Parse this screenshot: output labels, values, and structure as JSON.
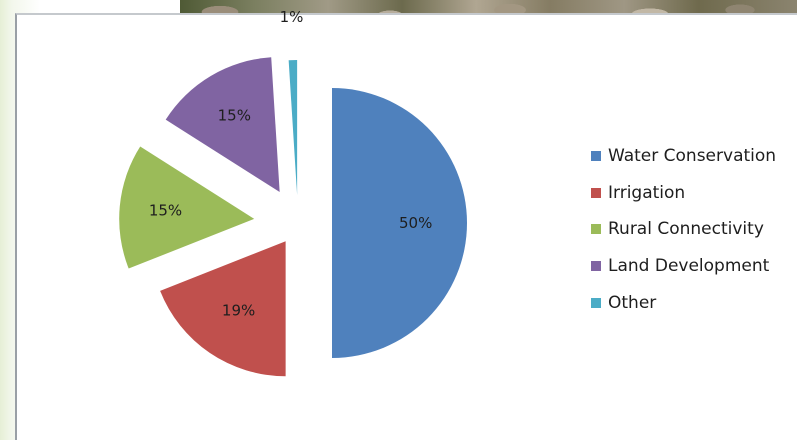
{
  "chart_data": {
    "type": "pie",
    "slices": [
      {
        "name": "Water Conservation",
        "value": 50,
        "label": "50%",
        "color": "#4f81bd"
      },
      {
        "name": "Irrigation",
        "value": 19,
        "label": "19%",
        "color": "#c0504d"
      },
      {
        "name": "Rural Connectivity",
        "value": 15,
        "label": "15%",
        "color": "#9bbb59"
      },
      {
        "name": "Land Development",
        "value": 15,
        "label": "15%",
        "color": "#8064a2"
      },
      {
        "name": "Other",
        "value": 1,
        "label": "1%",
        "color": "#4bacc6"
      }
    ],
    "legend": {
      "position": "right"
    },
    "exploded": true
  }
}
